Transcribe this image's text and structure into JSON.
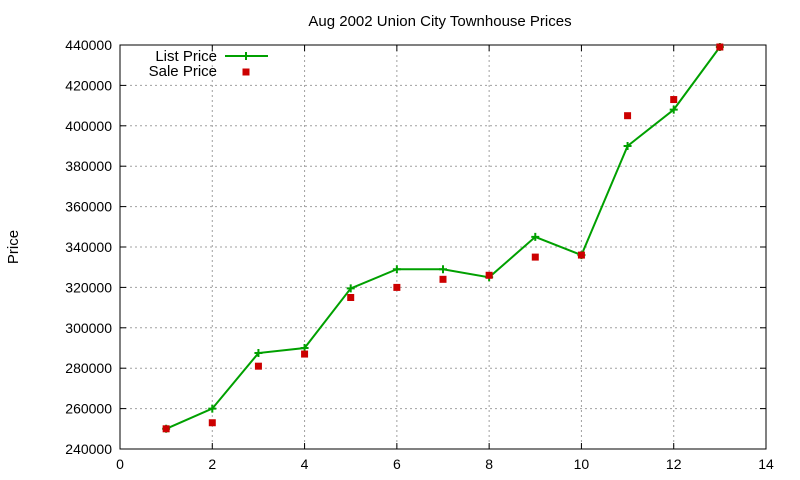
{
  "chart_data": {
    "type": "line",
    "title": "Aug 2002 Union City Townhouse Prices",
    "xlabel": "",
    "ylabel": "Price",
    "xlim": [
      0,
      14
    ],
    "ylim": [
      240000,
      440000
    ],
    "xticks": [
      0,
      2,
      4,
      6,
      8,
      10,
      12,
      14
    ],
    "yticks": [
      240000,
      260000,
      280000,
      300000,
      320000,
      340000,
      360000,
      380000,
      400000,
      420000,
      440000
    ],
    "grid": true,
    "legend": "top-left",
    "series": [
      {
        "name": "List Price",
        "style": "line-with-plus-markers",
        "color": "#00a000",
        "x": [
          1,
          2,
          3,
          4,
          5,
          6,
          7,
          8,
          9,
          10,
          11,
          12,
          13
        ],
        "y": [
          250000,
          260000,
          287500,
          290000,
          319500,
          329000,
          329000,
          325000,
          345000,
          336000,
          390000,
          408000,
          439000
        ]
      },
      {
        "name": "Sale Price",
        "style": "square-markers",
        "color": "#cc0000",
        "x": [
          1,
          2,
          3,
          4,
          5,
          6,
          7,
          8,
          9,
          10,
          11,
          12,
          13
        ],
        "y": [
          250000,
          253000,
          281000,
          287000,
          315000,
          320000,
          324000,
          326000,
          335000,
          336000,
          405000,
          413000,
          439000
        ]
      }
    ]
  }
}
